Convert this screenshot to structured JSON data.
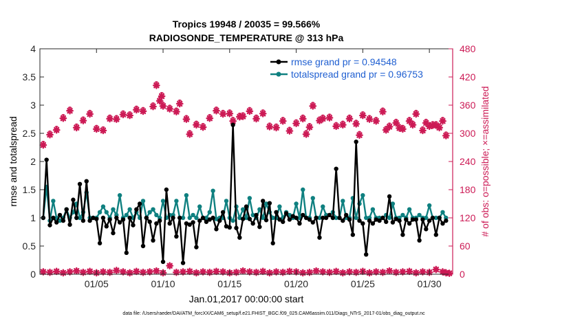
{
  "chart_data": {
    "type": "line",
    "title": "Tropics 19948 / 20035 = 99.566%",
    "subtitle": "RADIOSONDE_TEMPERATURE @ 313 hPa",
    "xlabel": "Jan.01,2017 00:00:00 start",
    "ylabel": "rmse and totalspread",
    "y2label": "# of obs: o=possible; ×=assimilated",
    "footnote": "data file: /Users/raeder/DAI/ATM_forcXX/CAM6_setup/f.e21.FHIST_BGC.f09_025.CAM6assim.011/Diags_NTrS_2017-01/obs_diag_output.nc",
    "xlim": [
      0.75,
      31.75
    ],
    "ylim": [
      0,
      4
    ],
    "y2lim": [
      0,
      480
    ],
    "xticks": [
      5,
      10,
      15,
      20,
      25,
      30
    ],
    "xtick_labels": [
      "01/05",
      "01/10",
      "01/15",
      "01/20",
      "01/25",
      "01/30"
    ],
    "yticks": [
      0,
      0.5,
      1,
      1.5,
      2,
      2.5,
      3,
      3.5,
      4
    ],
    "ytick_labels": [
      "0",
      "0.5",
      "1",
      "1.5",
      "2",
      "2.5",
      "3",
      "3.5",
      "4"
    ],
    "y2ticks": [
      0,
      60,
      120,
      180,
      240,
      300,
      360,
      420,
      480
    ],
    "y2tick_labels": [
      "0",
      "60",
      "120",
      "180",
      "240",
      "300",
      "360",
      "420",
      "480"
    ],
    "legend": [
      "rmse grand pr = 0.94548",
      "totalspread grand pr = 0.96753"
    ],
    "legend_position": "top-right",
    "colors": {
      "rmse": "#000000",
      "spread": "#0f8080",
      "obs": "#cc1a55",
      "legend_text": "#1f5fd1"
    },
    "x": [
      1,
      1.25,
      1.5,
      1.75,
      2,
      2.25,
      2.5,
      2.75,
      3,
      3.25,
      3.5,
      3.75,
      4,
      4.25,
      4.5,
      4.75,
      5,
      5.25,
      5.5,
      5.75,
      6,
      6.25,
      6.5,
      6.75,
      7,
      7.25,
      7.5,
      7.75,
      8,
      8.25,
      8.5,
      8.75,
      9,
      9.25,
      9.5,
      9.75,
      10,
      10.25,
      10.5,
      10.75,
      11,
      11.25,
      11.5,
      11.75,
      12,
      12.25,
      12.5,
      12.75,
      13,
      13.25,
      13.5,
      13.75,
      14,
      14.25,
      14.5,
      14.75,
      15,
      15.25,
      15.5,
      15.75,
      16,
      16.25,
      16.5,
      16.75,
      17,
      17.25,
      17.5,
      17.75,
      18,
      18.25,
      18.5,
      18.75,
      19,
      19.25,
      19.5,
      19.75,
      20,
      20.25,
      20.5,
      20.75,
      21,
      21.25,
      21.5,
      21.75,
      22,
      22.25,
      22.5,
      22.75,
      23,
      23.25,
      23.5,
      23.75,
      24,
      24.25,
      24.5,
      24.75,
      25,
      25.25,
      25.5,
      25.75,
      26,
      26.25,
      26.5,
      26.75,
      27,
      27.25,
      27.5,
      27.75,
      28,
      28.25,
      28.5,
      28.75,
      29,
      29.25,
      29.5,
      29.75,
      30,
      30.25,
      30.5,
      30.75,
      31,
      31.25
    ],
    "series": [
      {
        "name": "rmse",
        "values": [
          1.0,
          2.03,
          0.87,
          1.0,
          0.92,
          1.05,
          0.95,
          1.15,
          0.88,
          1.32,
          1.0,
          1.6,
          0.95,
          1.65,
          0.95,
          1.0,
          0.98,
          0.55,
          1.0,
          0.85,
          0.97,
          0.73,
          1.0,
          0.92,
          0.97,
          0.38,
          1.0,
          0.87,
          1.15,
          1.25,
          0.5,
          1.0,
          0.93,
          0.6,
          0.9,
          0.95,
          0.22,
          1.5,
          0.9,
          1.0,
          0.67,
          1.0,
          0.2,
          0.9,
          0.88,
          0.92,
          0.48,
          0.95,
          1.0,
          0.93,
          0.97,
          1.0,
          0.8,
          0.95,
          1.1,
          0.85,
          0.83,
          2.65,
          0.82,
          0.65,
          0.98,
          1.2,
          0.98,
          0.9,
          1.05,
          0.84,
          1.3,
          0.96,
          1.26,
          0.55,
          1.1,
          0.97,
          0.93,
          1.08,
          0.97,
          1.03,
          1.0,
          0.9,
          1.05,
          1.0,
          0.97,
          0.92,
          1.0,
          0.65,
          1.0,
          1.0,
          1.05,
          1.0,
          1.87,
          1.0,
          0.95,
          1.05,
          0.97,
          0.7,
          2.35,
          0.95,
          0.9,
          0.35,
          0.95,
          0.9,
          0.97,
          0.95,
          1.0,
          0.93,
          1.38,
          0.92,
          0.98,
          0.95,
          0.7,
          0.97,
          0.9,
          0.97,
          0.97,
          0.6,
          0.97,
          0.8,
          0.95,
          1.0,
          0.7,
          1.0,
          0.9,
          0.95
        ]
      },
      {
        "name": "totalspread",
        "values": [
          1.0,
          1.55,
          0.95,
          1.3,
          1.0,
          0.95,
          1.0,
          1.15,
          1.0,
          1.1,
          1.25,
          1.0,
          1.1,
          1.45,
          1.0,
          1.0,
          1.0,
          1.1,
          1.2,
          1.1,
          1.0,
          1.15,
          1.05,
          1.4,
          1.0,
          1.05,
          1.15,
          1.0,
          1.1,
          1.0,
          1.3,
          1.0,
          1.1,
          1.15,
          1.05,
          1.0,
          1.3,
          1.0,
          1.05,
          1.05,
          1.3,
          1.0,
          1.0,
          1.4,
          1.0,
          1.05,
          1.0,
          1.2,
          1.0,
          1.0,
          1.1,
          1.48,
          0.98,
          1.0,
          1.0,
          1.3,
          1.0,
          0.95,
          1.2,
          1.0,
          1.15,
          1.0,
          1.35,
          1.05,
          1.0,
          1.15,
          1.0,
          1.25,
          1.1,
          1.0,
          1.0,
          1.2,
          1.0,
          1.1,
          1.05,
          1.0,
          1.25,
          1.0,
          1.5,
          1.0,
          1.0,
          1.35,
          1.0,
          1.0,
          1.2,
          1.05,
          1.05,
          1.1,
          1.0,
          1.0,
          1.3,
          1.0,
          1.0,
          1.35,
          1.0,
          1.25,
          1.4,
          1.0,
          1.0,
          1.15,
          1.0,
          1.0,
          1.0,
          1.05,
          1.0,
          1.25,
          1.0,
          1.0,
          1.05,
          1.0,
          1.15,
          1.0,
          1.0,
          1.05,
          1.0,
          1.0,
          1.22,
          1.0,
          1.0,
          1.0,
          1.1,
          1.0
        ]
      }
    ],
    "obs_possible": [
      275,
      297,
      307,
      332,
      348,
      312,
      327,
      341,
      309,
      306,
      331,
      330,
      340,
      338,
      350,
      347,
      357,
      369,
      358,
      352,
      346,
      363,
      330,
      298,
      318,
      313,
      402,
      379,
      332,
      348,
      341,
      342,
      326,
      335,
      336,
      347,
      331,
      342,
      314,
      312,
      326,
      305,
      321,
      331,
      298,
      313,
      358,
      327,
      331,
      333,
      315,
      318,
      331,
      320,
      338,
      330,
      326,
      346,
      314,
      322,
      309,
      326,
      341,
      306,
      315,
      317,
      326,
      295,
      296,
      307,
      311,
      318,
      322,
      317,
      312
    ],
    "obs_possible_x": [
      1,
      1.5,
      2,
      2.5,
      3,
      3.5,
      4,
      4.5,
      5,
      5.5,
      6,
      6.5,
      7,
      7.5,
      8,
      8.5,
      9.25,
      9.75,
      10,
      10.5,
      11,
      11.25,
      11.75,
      12,
      12.5,
      13,
      9.5,
      9.9,
      13.5,
      14,
      14.5,
      15,
      15.25,
      15.75,
      16,
      16.5,
      17,
      17.5,
      18,
      18.5,
      19,
      19.5,
      20,
      20.5,
      20.75,
      21,
      21.25,
      21.75,
      22,
      22.5,
      23,
      23.5,
      24,
      24.5,
      25,
      25.5,
      26,
      26.5,
      27,
      27.5,
      28,
      28.5,
      29,
      29.5,
      30,
      30.5,
      31,
      31.25,
      24.75,
      26.75,
      27.75,
      28.75,
      29.75,
      30.25,
      30.75
    ],
    "obs_assimilated": [
      275,
      297,
      307,
      332,
      348,
      312,
      327,
      341,
      309,
      306,
      331,
      330,
      340,
      338,
      350,
      347,
      357,
      369,
      358,
      352,
      346,
      363,
      330,
      298,
      318,
      313,
      402,
      379,
      332,
      348,
      341,
      342,
      326,
      335,
      336,
      347,
      331,
      342,
      314,
      312,
      326,
      305,
      321,
      331,
      298,
      313,
      358,
      327,
      331,
      333,
      315,
      318,
      331,
      320,
      338,
      330,
      326,
      346,
      314,
      322,
      309,
      326,
      341,
      306,
      315,
      317,
      326,
      295,
      296,
      307,
      311,
      318,
      322,
      317,
      312
    ],
    "obs_low_possible": [
      5,
      4,
      6,
      3,
      5,
      7,
      4,
      6,
      3,
      5,
      4,
      8,
      5,
      3,
      6,
      4,
      5,
      7,
      3,
      18,
      4,
      5,
      6,
      3,
      5,
      4,
      6,
      5,
      3,
      4,
      7,
      5,
      4,
      6,
      3,
      5,
      4,
      6,
      5,
      3,
      4,
      7,
      5,
      4,
      6,
      3,
      5,
      4,
      6,
      3,
      5,
      4,
      7,
      4,
      5,
      6,
      3,
      5,
      4,
      10,
      5,
      3,
      2
    ],
    "obs_low_x": [
      1,
      1.5,
      2,
      2.5,
      3,
      3.5,
      4,
      4.5,
      5,
      5.5,
      6,
      6.5,
      7,
      7.5,
      8,
      8.5,
      9,
      9.5,
      10,
      10.5,
      11,
      11.5,
      12,
      12.5,
      13,
      13.5,
      14,
      14.5,
      15,
      15.5,
      16,
      16.5,
      17,
      17.5,
      18,
      18.5,
      19,
      19.5,
      20,
      20.5,
      21,
      21.5,
      22,
      22.5,
      23,
      23.5,
      24,
      24.5,
      25,
      25.5,
      26,
      26.5,
      27,
      27.5,
      28,
      28.5,
      29,
      29.5,
      30,
      30.5,
      31,
      31.25,
      31.5
    ]
  }
}
